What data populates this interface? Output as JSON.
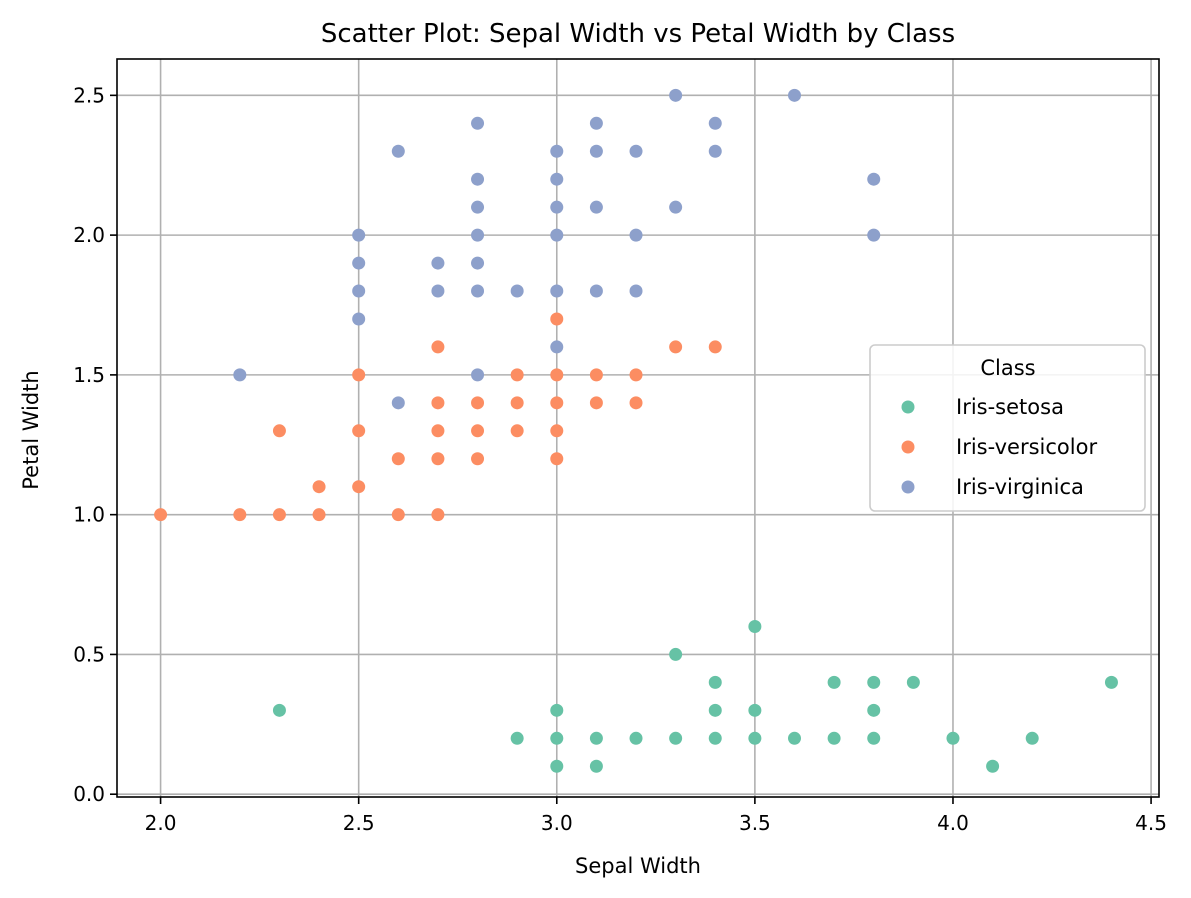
{
  "chart_data": {
    "type": "scatter",
    "title": "Scatter Plot: Sepal Width vs Petal Width by Class",
    "xlabel": "Sepal Width",
    "ylabel": "Petal Width",
    "xlim": [
      1.89,
      4.52
    ],
    "ylim": [
      -0.01,
      2.63
    ],
    "xticks": [
      "2.0",
      "2.5",
      "3.0",
      "3.5",
      "4.0",
      "4.5"
    ],
    "yticks": [
      "0.0",
      "0.5",
      "1.0",
      "1.5",
      "2.0",
      "2.5"
    ],
    "grid": true,
    "legend": {
      "title": "Class",
      "placement": "center-right"
    },
    "series": [
      {
        "name": "Iris-setosa",
        "color": "#66c2a5",
        "points": [
          [
            2.3,
            0.3
          ],
          [
            2.9,
            0.2
          ],
          [
            3.0,
            0.1
          ],
          [
            3.0,
            0.2
          ],
          [
            3.0,
            0.3
          ],
          [
            3.1,
            0.1
          ],
          [
            3.1,
            0.2
          ],
          [
            3.2,
            0.2
          ],
          [
            3.3,
            0.2
          ],
          [
            3.3,
            0.5
          ],
          [
            3.4,
            0.2
          ],
          [
            3.4,
            0.3
          ],
          [
            3.4,
            0.4
          ],
          [
            3.5,
            0.2
          ],
          [
            3.5,
            0.3
          ],
          [
            3.5,
            0.6
          ],
          [
            3.6,
            0.2
          ],
          [
            3.7,
            0.2
          ],
          [
            3.7,
            0.4
          ],
          [
            3.8,
            0.2
          ],
          [
            3.8,
            0.3
          ],
          [
            3.8,
            0.4
          ],
          [
            3.9,
            0.4
          ],
          [
            4.0,
            0.2
          ],
          [
            4.1,
            0.1
          ],
          [
            4.2,
            0.2
          ],
          [
            4.4,
            0.4
          ]
        ]
      },
      {
        "name": "Iris-versicolor",
        "color": "#fc8d62",
        "points": [
          [
            2.0,
            1.0
          ],
          [
            2.2,
            1.0
          ],
          [
            2.3,
            1.0
          ],
          [
            2.3,
            1.3
          ],
          [
            2.4,
            1.0
          ],
          [
            2.4,
            1.1
          ],
          [
            2.5,
            1.1
          ],
          [
            2.5,
            1.3
          ],
          [
            2.5,
            1.5
          ],
          [
            2.6,
            1.0
          ],
          [
            2.6,
            1.2
          ],
          [
            2.7,
            1.0
          ],
          [
            2.7,
            1.2
          ],
          [
            2.7,
            1.3
          ],
          [
            2.7,
            1.4
          ],
          [
            2.7,
            1.6
          ],
          [
            2.8,
            1.2
          ],
          [
            2.8,
            1.3
          ],
          [
            2.8,
            1.4
          ],
          [
            2.9,
            1.3
          ],
          [
            2.9,
            1.4
          ],
          [
            2.9,
            1.5
          ],
          [
            3.0,
            1.2
          ],
          [
            3.0,
            1.3
          ],
          [
            3.0,
            1.4
          ],
          [
            3.0,
            1.5
          ],
          [
            3.0,
            1.7
          ],
          [
            3.1,
            1.4
          ],
          [
            3.1,
            1.5
          ],
          [
            3.2,
            1.4
          ],
          [
            3.2,
            1.5
          ],
          [
            3.3,
            1.6
          ],
          [
            3.4,
            1.6
          ]
        ]
      },
      {
        "name": "Iris-virginica",
        "color": "#8da0cb",
        "points": [
          [
            2.2,
            1.5
          ],
          [
            2.5,
            1.7
          ],
          [
            2.5,
            1.8
          ],
          [
            2.5,
            1.9
          ],
          [
            2.5,
            2.0
          ],
          [
            2.6,
            1.4
          ],
          [
            2.6,
            2.3
          ],
          [
            2.7,
            1.8
          ],
          [
            2.7,
            1.9
          ],
          [
            2.8,
            1.5
          ],
          [
            2.8,
            1.8
          ],
          [
            2.8,
            1.9
          ],
          [
            2.8,
            2.0
          ],
          [
            2.8,
            2.1
          ],
          [
            2.8,
            2.2
          ],
          [
            2.8,
            2.4
          ],
          [
            2.9,
            1.8
          ],
          [
            3.0,
            1.6
          ],
          [
            3.0,
            1.8
          ],
          [
            3.0,
            2.0
          ],
          [
            3.0,
            2.1
          ],
          [
            3.0,
            2.2
          ],
          [
            3.0,
            2.3
          ],
          [
            3.1,
            1.8
          ],
          [
            3.1,
            2.1
          ],
          [
            3.1,
            2.3
          ],
          [
            3.1,
            2.4
          ],
          [
            3.2,
            1.8
          ],
          [
            3.2,
            2.0
          ],
          [
            3.2,
            2.3
          ],
          [
            3.3,
            2.1
          ],
          [
            3.3,
            2.5
          ],
          [
            3.4,
            2.3
          ],
          [
            3.4,
            2.4
          ],
          [
            3.6,
            2.5
          ],
          [
            3.8,
            2.0
          ],
          [
            3.8,
            2.2
          ]
        ]
      }
    ]
  }
}
